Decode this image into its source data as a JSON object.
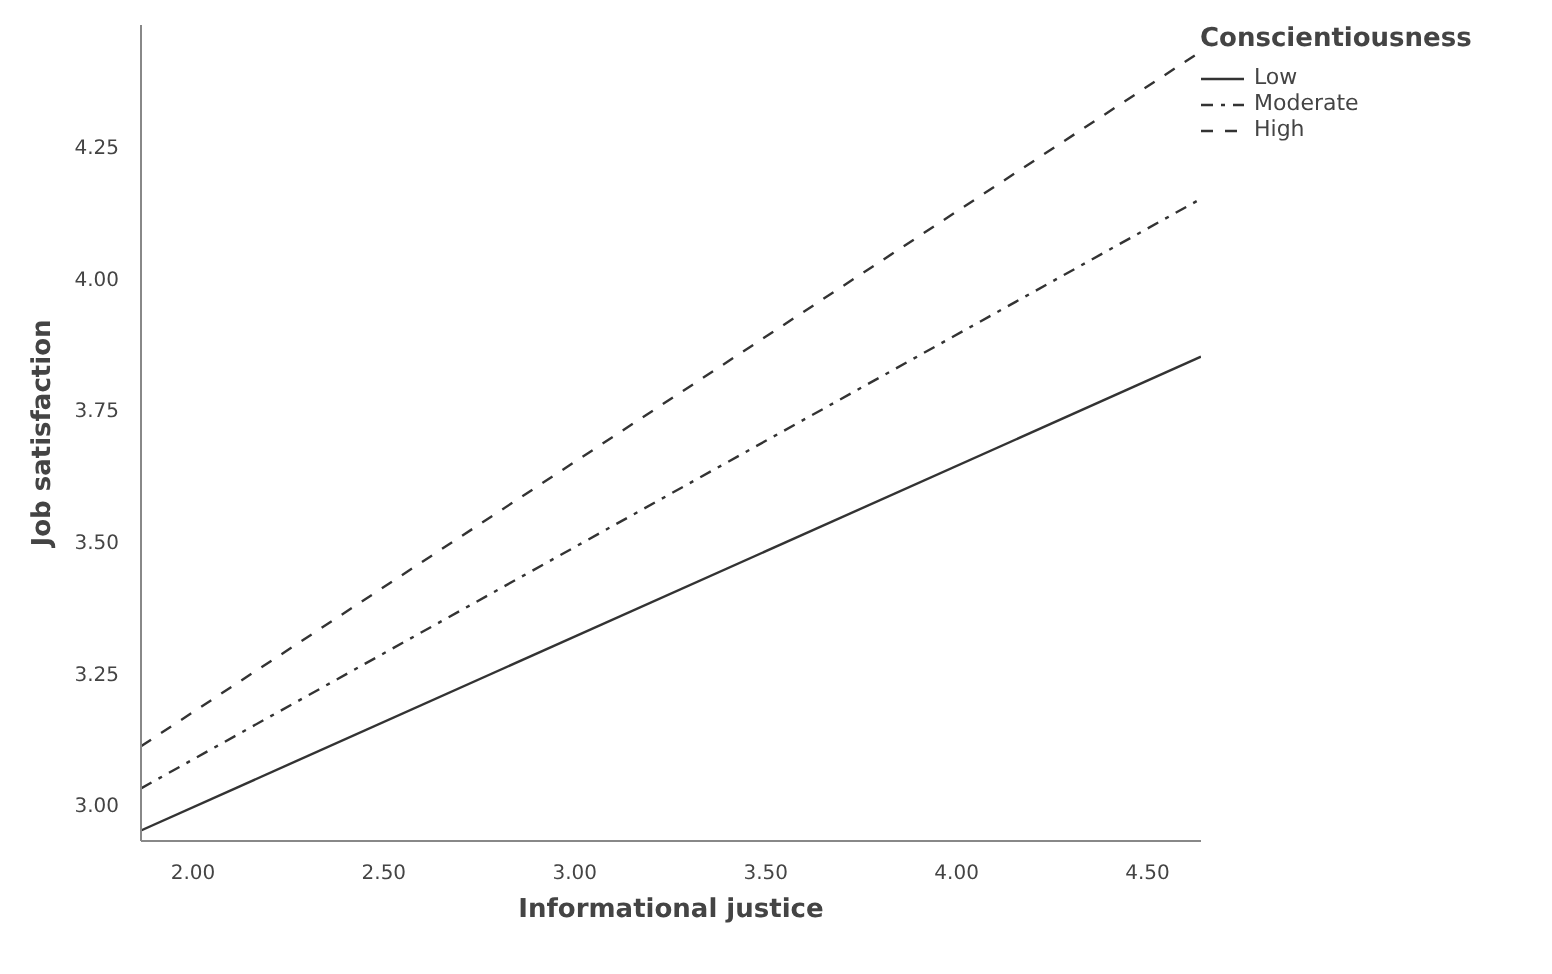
{
  "chart_data": {
    "type": "line",
    "xlabel": "Informational justice",
    "ylabel": "Job satisfaction",
    "legend_title": "Conscientiousness",
    "legend": "top right",
    "grid": false,
    "marker": "none",
    "x": [
      1.864,
      4.64
    ],
    "xlim": [
      1.864,
      4.64
    ],
    "xticks": [
      {
        "value": 2,
        "label": "2.00"
      },
      {
        "value": 2.5,
        "label": "2.50"
      },
      {
        "value": 3,
        "label": "3.00"
      },
      {
        "value": 3.5,
        "label": "3.50"
      },
      {
        "value": 4,
        "label": "4.00"
      },
      {
        "value": 4.5,
        "label": "4.50"
      }
    ],
    "ylim": [
      2.93,
      4.48
    ],
    "yticks": [
      {
        "value": 3,
        "label": "3.00"
      },
      {
        "value": 3.25,
        "label": "3.25"
      },
      {
        "value": 3.5,
        "label": "3.50"
      },
      {
        "value": 3.75,
        "label": "3.75"
      },
      {
        "value": 4,
        "label": "4.00"
      },
      {
        "value": 4.25,
        "label": "4.25"
      }
    ],
    "series": [
      {
        "name": "Low",
        "color": "#333333",
        "line_style": "solid",
        "values": [
          2.95,
          3.85
        ]
      },
      {
        "name": "Moderate",
        "color": "#333333",
        "line_style": "dashdot",
        "values": [
          3.03,
          4.15
        ]
      },
      {
        "name": "High",
        "color": "#333333",
        "line_style": "dashed",
        "values": [
          3.11,
          4.43
        ]
      }
    ]
  }
}
